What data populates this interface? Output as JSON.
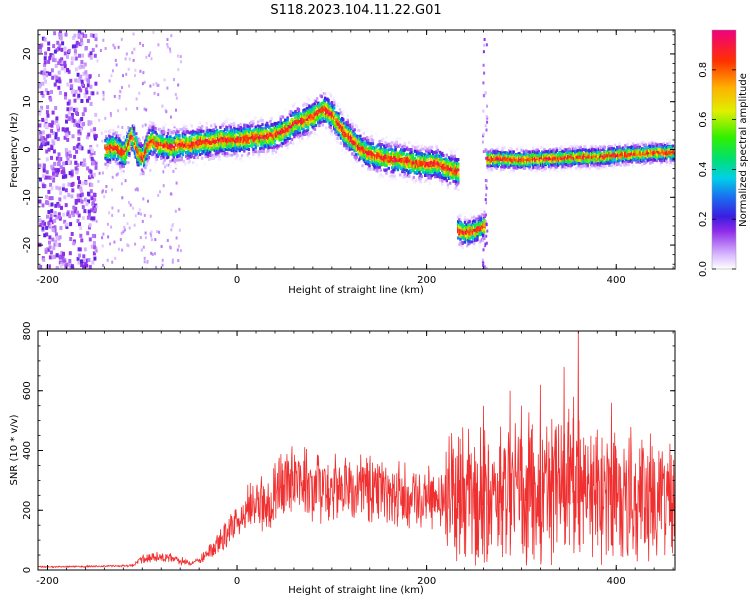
{
  "title": "S118.2023.104.11.22.G01",
  "chart_data": [
    {
      "type": "heatmap",
      "xlabel": "Height of straight line (km)",
      "ylabel": "Frequency (Hz)",
      "xlim": [
        -210,
        462
      ],
      "ylim": [
        -25,
        25
      ],
      "xticks": [
        -200,
        0,
        200,
        400
      ],
      "yticks": [
        -20,
        -10,
        0,
        10,
        20
      ],
      "colorbar": {
        "label": "Normalized spectral amplitude",
        "ticks": [
          0.0,
          0.2,
          0.4,
          0.6,
          0.8
        ],
        "range": [
          0,
          0.96
        ]
      },
      "ridge": {
        "x": [
          -140,
          -130,
          -120,
          -112,
          -105,
          -100,
          -95,
          -90,
          -85,
          -80,
          -70,
          -60,
          -50,
          -40,
          -30,
          -20,
          -10,
          0,
          10,
          20,
          30,
          40,
          50,
          60,
          70,
          80,
          90,
          100,
          110,
          120,
          130,
          140,
          150,
          160,
          170,
          180,
          190,
          200,
          210,
          220,
          230
        ],
        "y": [
          0,
          0.5,
          -1,
          3,
          -1,
          -2,
          1,
          2,
          1,
          1,
          0.5,
          1,
          1,
          1.5,
          1.5,
          2,
          2,
          2,
          2.3,
          2.5,
          2.8,
          3,
          4,
          5.5,
          6,
          7,
          8.5,
          7,
          4,
          2,
          0,
          -1,
          -1.5,
          -2,
          -2,
          -2.5,
          -3,
          -3,
          -3,
          -4,
          -4.5
        ]
      },
      "ridge_low": {
        "x": [
          232,
          240,
          250,
          260
        ],
        "y": [
          -17,
          -17.5,
          -17,
          -16
        ]
      },
      "ridge_right": {
        "x": [
          263,
          280,
          300,
          320,
          340,
          360,
          380,
          400,
          420,
          440,
          462
        ],
        "y": [
          -2,
          -2,
          -2.2,
          -2,
          -1.8,
          -1.6,
          -1.6,
          -1.2,
          -1,
          -0.7,
          -0.6
        ]
      },
      "noise_band": {
        "x": [
          -210,
          -150
        ],
        "y": [
          -25,
          25
        ]
      },
      "gap": {
        "x": [
          258,
          263
        ]
      }
    },
    {
      "type": "line",
      "xlabel": "Height of straight line (km)",
      "ylabel": "SNR (10 * v/v)",
      "xlim": [
        -210,
        462
      ],
      "ylim": [
        0,
        800
      ],
      "xticks": [
        -200,
        0,
        200,
        400
      ],
      "yticks": [
        0,
        200,
        400,
        600,
        800
      ],
      "color": "#f03030",
      "envelope": {
        "x": [
          -210,
          -150,
          -110,
          -100,
          -90,
          -70,
          -50,
          -40,
          -30,
          -20,
          -10,
          0,
          10,
          20,
          30,
          40,
          60,
          80,
          100,
          120,
          140,
          160,
          180,
          200,
          220,
          240,
          260,
          280,
          300,
          320,
          340,
          360,
          380,
          400,
          420,
          440,
          462
        ],
        "y": [
          10,
          12,
          15,
          35,
          45,
          40,
          25,
          30,
          60,
          90,
          120,
          150,
          200,
          220,
          240,
          270,
          290,
          280,
          275,
          270,
          270,
          260,
          250,
          245,
          250,
          260,
          270,
          280,
          290,
          285,
          280,
          280,
          275,
          270,
          265,
          250,
          245
        ]
      },
      "peaks": {
        "x": [
          260,
          265,
          278,
          288,
          300,
          305,
          320,
          345,
          350,
          355,
          360,
          380,
          395
        ],
        "y": [
          550,
          420,
          480,
          600,
          550,
          350,
          620,
          680,
          540,
          580,
          800,
          470,
          560
        ]
      }
    }
  ]
}
